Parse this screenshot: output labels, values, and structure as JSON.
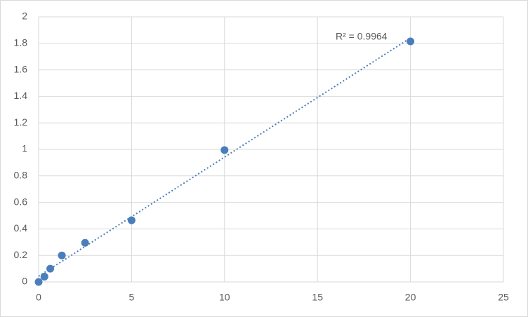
{
  "chart_data": {
    "type": "scatter",
    "x": [
      0,
      0.3125,
      0.625,
      1.25,
      2.5,
      5,
      10,
      20
    ],
    "values": [
      0,
      0.04,
      0.1,
      0.2,
      0.295,
      0.465,
      0.995,
      1.815
    ],
    "color": "#4a7ebb",
    "trendline": "linear",
    "annotation": "R² = 0.9964",
    "xlim": [
      0,
      25
    ],
    "xticks": [
      0,
      5,
      10,
      15,
      20,
      25
    ],
    "ylim": [
      0,
      2
    ],
    "yticks": [
      0,
      0.2,
      0.4,
      0.6,
      0.8,
      1,
      1.2,
      1.4,
      1.6,
      1.8,
      2
    ],
    "grid": true
  }
}
